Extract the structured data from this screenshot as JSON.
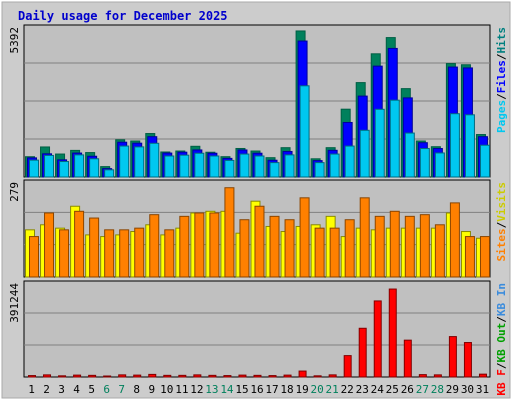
{
  "chart_data": {
    "type": "bar",
    "title": "Daily usage for December 2025",
    "categories": [
      "1",
      "2",
      "3",
      "4",
      "5",
      "6",
      "7",
      "8",
      "9",
      "10",
      "11",
      "12",
      "13",
      "14",
      "15",
      "16",
      "17",
      "18",
      "19",
      "20",
      "21",
      "22",
      "23",
      "24",
      "25",
      "26",
      "27",
      "28",
      "29",
      "30",
      "31"
    ],
    "weekend_days": [
      "6",
      "7",
      "13",
      "14",
      "20",
      "21",
      "27",
      "28"
    ],
    "panels": [
      {
        "ymax": 5392,
        "ymax_label": "5392",
        "ylabel": [
          "Pages",
          "/",
          "Files",
          "/",
          "Hits"
        ],
        "series": [
          {
            "name": "Hits",
            "values": [
              734,
              1087,
              831,
              963,
              884,
              376,
              1346,
              1302,
              1573,
              905,
              940,
              1111,
              896,
              735,
              1032,
              940,
              699,
              1061,
              5285,
              659,
              1061,
              2454,
              3416,
              4458,
              5045,
              3198,
              1302,
              1096,
              4105,
              4062,
              1537
            ]
          },
          {
            "name": "Files",
            "values": [
              692,
              839,
              621,
              866,
              751,
              303,
              1259,
              1224,
              1459,
              866,
              898,
              979,
              860,
              674,
              978,
              861,
              607,
              924,
              4920,
              593,
              966,
              1973,
              2928,
              4012,
              4653,
              2863,
              1241,
              1031,
              3979,
              3947,
              1459
            ]
          },
          {
            "name": "Pages",
            "values": [
              610,
              780,
              560,
              800,
              660,
              260,
              1120,
              1090,
              1220,
              760,
              790,
              860,
              760,
              600,
              830,
              760,
              520,
              800,
              3300,
              520,
              830,
              1120,
              1690,
              2450,
              2780,
              1590,
              1030,
              870,
              2290,
              2250,
              1150
            ]
          }
        ]
      },
      {
        "ymax": 279,
        "ymax_label": "279",
        "ylabel": [
          "Sites",
          "/",
          "Visits"
        ],
        "series": [
          {
            "name": "Visits",
            "values": [
              140,
              155,
              145,
              210,
              125,
              120,
              125,
              135,
              155,
              125,
              145,
              190,
              195,
              195,
              130,
              225,
              150,
              135,
              150,
              155,
              180,
              120,
              145,
              140,
              145,
              145,
              145,
              145,
              190,
              135,
              115
            ]
          },
          {
            "name": "Sites",
            "values": [
              120,
              190,
              140,
              195,
              175,
              140,
              140,
              145,
              185,
              140,
              180,
              190,
              190,
              265,
              170,
              210,
              180,
              170,
              235,
              145,
              145,
              170,
              235,
              180,
              195,
              180,
              185,
              155,
              220,
              120,
              120
            ]
          }
        ]
      },
      {
        "ymax": 391244,
        "ymax_label": "391244",
        "ylabel": [
          "KB F",
          "/",
          "KB Out",
          "/",
          "KB In"
        ],
        "series": [
          {
            "name": "KB F",
            "values": [
              6000,
              9000,
              5000,
              8000,
              7000,
              4000,
              9000,
              8000,
              11000,
              7000,
              7000,
              9000,
              7000,
              6000,
              8000,
              7000,
              6000,
              8000,
              25000,
              5000,
              9000,
              90000,
              205000,
              320000,
              370000,
              155000,
              10000,
              9000,
              170000,
              145000,
              12000
            ]
          }
        ]
      }
    ]
  }
}
